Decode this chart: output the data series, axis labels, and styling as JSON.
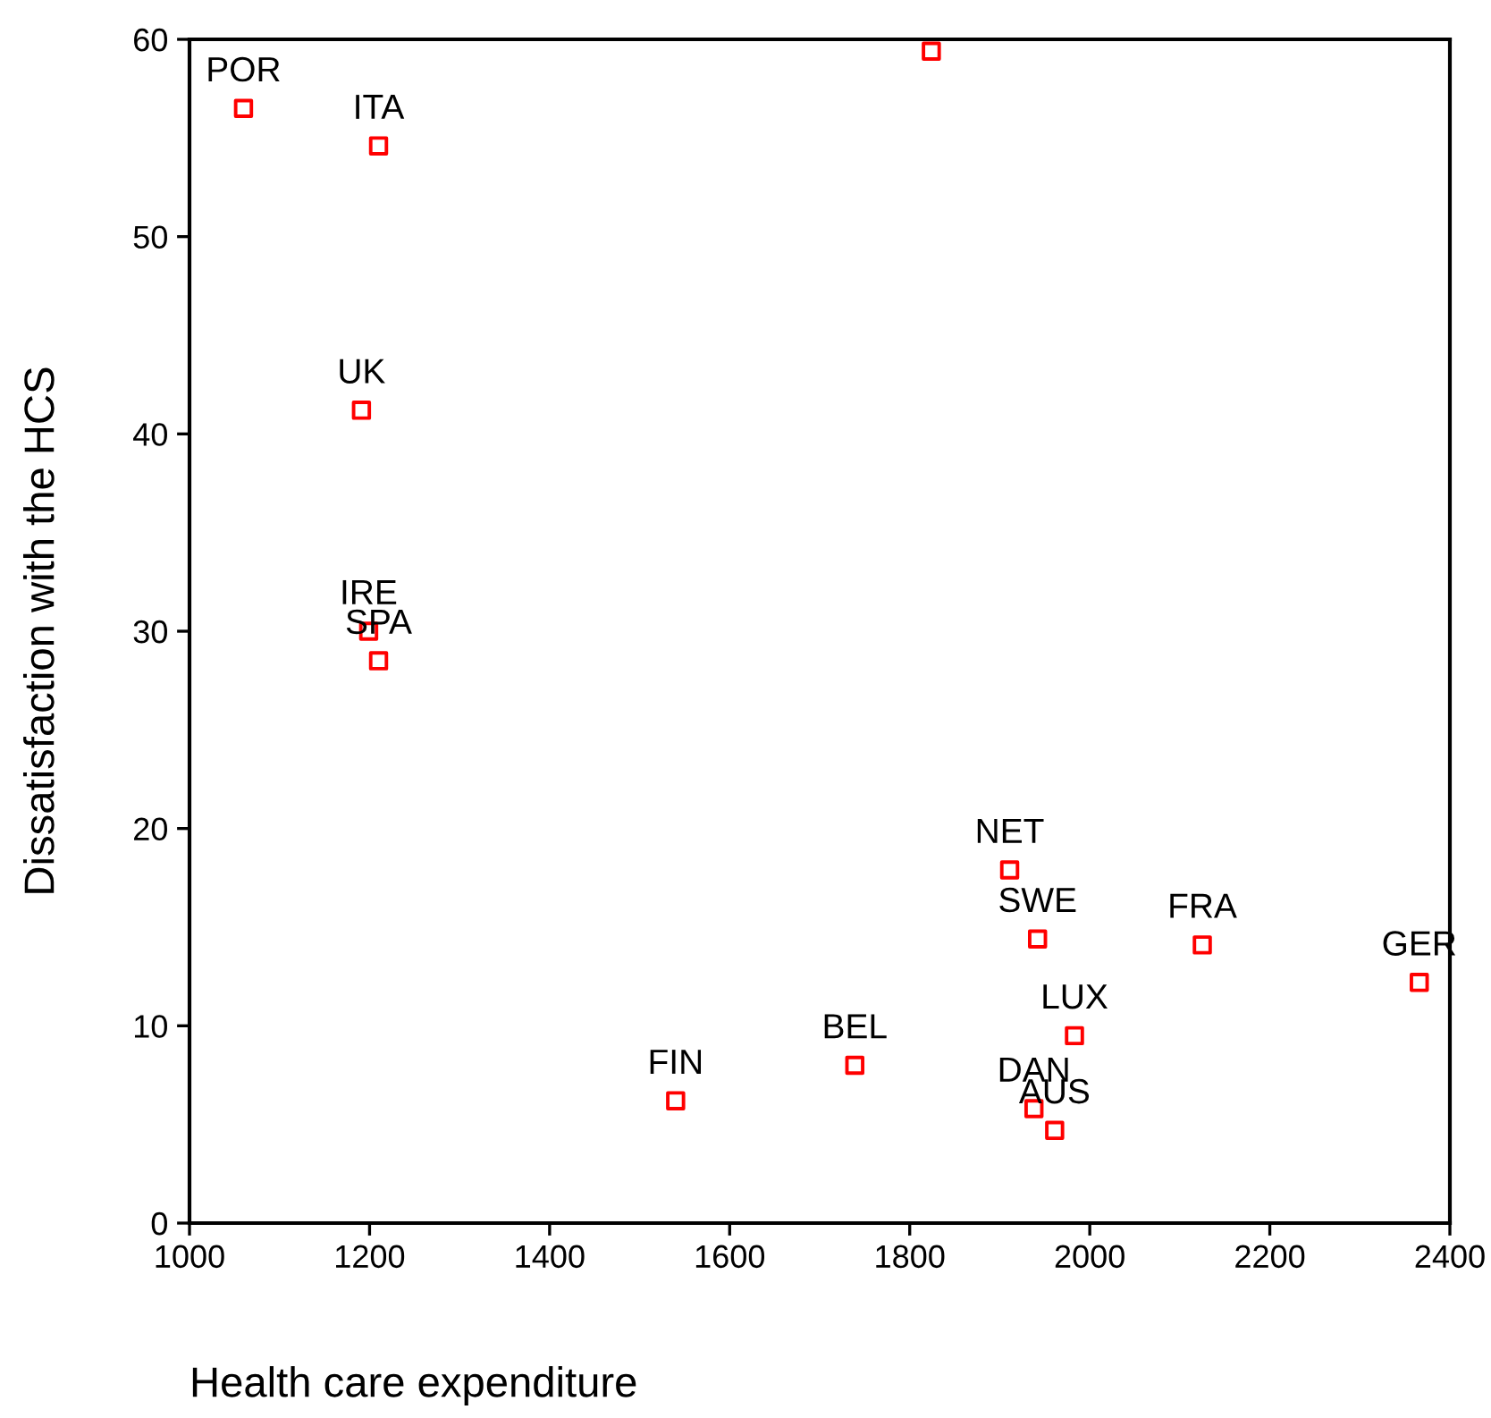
{
  "chart_data": {
    "type": "scatter",
    "xlabel": "Health care expenditure",
    "ylabel": "Dissatisfaction with the HCS",
    "xlim": [
      1000,
      2400
    ],
    "xticks": [
      1000,
      1200,
      1400,
      1600,
      1800,
      2000,
      2200,
      2400
    ],
    "ylim": [
      0,
      60
    ],
    "yticks": [
      0,
      10,
      20,
      30,
      40,
      50,
      60
    ],
    "grid": false,
    "marker": "square",
    "series": [
      {
        "color": "#ff0000",
        "x": [
          1060,
          1210,
          1191,
          1199,
          1210,
          1824,
          1911,
          1942,
          2125,
          2366,
          1983,
          1739,
          1938,
          1961,
          1540
        ],
        "values": [
          56.5,
          54.6,
          41.2,
          30.0,
          28.5,
          59.4,
          17.9,
          14.4,
          14.1,
          12.2,
          9.5,
          8.0,
          5.8,
          4.7,
          6.2
        ]
      }
    ],
    "annotations": [
      {
        "text": "POR",
        "x": 1060,
        "y": 56.5
      },
      {
        "text": "ITA",
        "x": 1210,
        "y": 54.6
      },
      {
        "text": "UK",
        "x": 1191,
        "y": 41.2
      },
      {
        "text": "IRE",
        "x": 1199,
        "y": 30.0
      },
      {
        "text": "SPA",
        "x": 1210,
        "y": 28.5
      },
      {
        "text": "NET",
        "x": 1911,
        "y": 17.9
      },
      {
        "text": "SWE",
        "x": 1942,
        "y": 14.4
      },
      {
        "text": "FRA",
        "x": 2125,
        "y": 14.1
      },
      {
        "text": "GER",
        "x": 2366,
        "y": 12.2
      },
      {
        "text": "LUX",
        "x": 1983,
        "y": 9.5
      },
      {
        "text": "BEL",
        "x": 1739,
        "y": 8.0
      },
      {
        "text": "DAN",
        "x": 1938,
        "y": 5.8
      },
      {
        "text": "AUS",
        "x": 1961,
        "y": 4.7
      },
      {
        "text": "FIN",
        "x": 1540,
        "y": 6.2
      }
    ]
  }
}
